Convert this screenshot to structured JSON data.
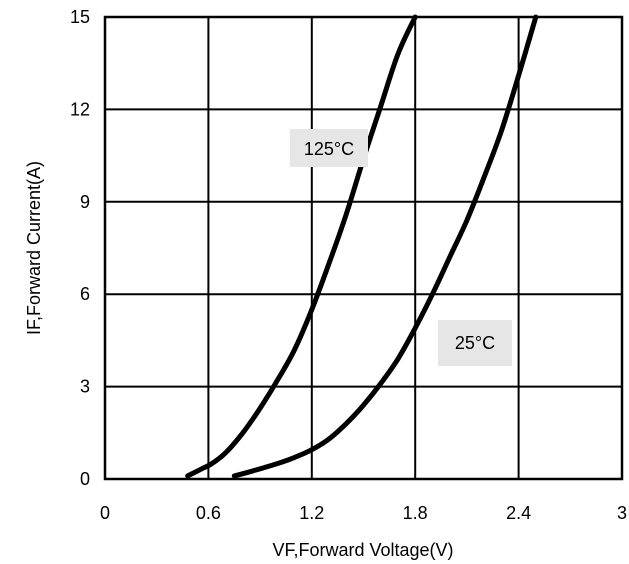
{
  "chart_data": {
    "type": "line",
    "title": "",
    "xlabel": "VF,Forward Voltage(V)",
    "ylabel": "IF,Forward Current(A)",
    "xlim": [
      0,
      3
    ],
    "ylim": [
      0,
      15
    ],
    "xticks": [
      0,
      0.6,
      1.2,
      1.8,
      2.4,
      3
    ],
    "xtick_labels": [
      "0",
      "0.6",
      "1.2",
      "1.8",
      "2.4",
      "3"
    ],
    "yticks": [
      0,
      3,
      6,
      9,
      12,
      15
    ],
    "ytick_labels": [
      "0",
      "3",
      "6",
      "9",
      "12",
      "15"
    ],
    "grid": true,
    "series": [
      {
        "name": "125°C",
        "x": [
          0.48,
          0.55,
          0.62,
          0.7,
          0.8,
          0.9,
          1.0,
          1.1,
          1.2,
          1.3,
          1.4,
          1.5,
          1.6,
          1.7,
          1.8
        ],
        "y": [
          0.1,
          0.3,
          0.5,
          0.85,
          1.5,
          2.3,
          3.2,
          4.2,
          5.5,
          7.0,
          8.6,
          10.4,
          12.1,
          13.8,
          15.0
        ]
      },
      {
        "name": "25°C",
        "x": [
          0.75,
          0.85,
          1.0,
          1.1,
          1.2,
          1.3,
          1.4,
          1.5,
          1.6,
          1.7,
          1.8,
          1.9,
          2.0,
          2.1,
          2.2,
          2.3,
          2.4,
          2.5
        ],
        "y": [
          0.1,
          0.25,
          0.5,
          0.7,
          0.95,
          1.3,
          1.8,
          2.4,
          3.1,
          3.9,
          4.9,
          6.0,
          7.2,
          8.4,
          9.8,
          11.3,
          13.1,
          15.0
        ]
      }
    ],
    "annotations": [
      "125°C",
      "25°C"
    ]
  }
}
